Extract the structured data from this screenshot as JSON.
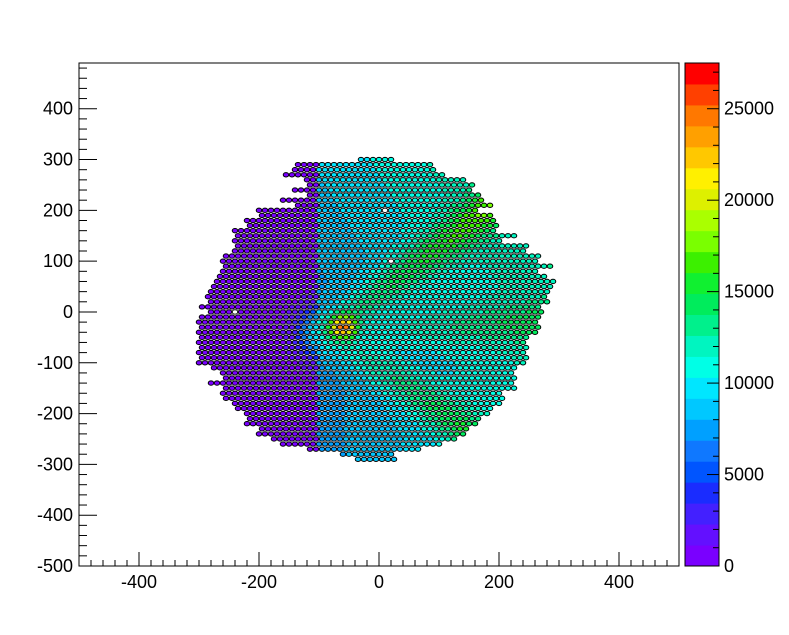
{
  "chart_data": {
    "type": "heatmap",
    "subtype": "hexagonal-sensor-map",
    "title": "",
    "xlabel": "",
    "ylabel": "",
    "xlim": [
      -500,
      500
    ],
    "ylim": [
      -500,
      490
    ],
    "x_ticks": [
      -400,
      -200,
      0,
      200,
      400
    ],
    "y_ticks": [
      -500,
      -400,
      -300,
      -200,
      -100,
      0,
      100,
      200,
      300,
      400
    ],
    "grid": false,
    "colorbar": {
      "min": 0,
      "max": 27500,
      "ticks": [
        0,
        5000,
        10000,
        15000,
        20000,
        25000
      ],
      "levels": [
        "#7a00ff",
        "#6310ff",
        "#4320ff",
        "#1a2cff",
        "#0055ff",
        "#0f78ff",
        "#00a0ff",
        "#00c8ff",
        "#00e6ff",
        "#00ffe6",
        "#00f5c0",
        "#00f08c",
        "#00ec5c",
        "#10f030",
        "#3cf000",
        "#7aff00",
        "#aaff00",
        "#ddf000",
        "#fff000",
        "#ffc800",
        "#ffa000",
        "#ff7800",
        "#ff4000",
        "#ff0000"
      ]
    },
    "grid_spec": {
      "cell_pitch_x": 10,
      "cell_pitch_y": 10,
      "odd_row_shift": 5,
      "cell_rx": 4.6,
      "cell_ry": 4.3,
      "row_y_start": 300,
      "rows": [
        [
          300,
          -3,
          2
        ],
        [
          290,
          -14,
          8
        ],
        [
          280,
          -14,
          9
        ],
        [
          270,
          -16,
          10
        ],
        [
          260,
          -12,
          14
        ],
        [
          250,
          -12,
          15
        ],
        [
          240,
          -14,
          15
        ],
        [
          230,
          -12,
          16
        ],
        [
          220,
          -16,
          17
        ],
        [
          210,
          -14,
          18
        ],
        [
          200,
          -20,
          16
        ],
        [
          190,
          -20,
          18
        ],
        [
          180,
          -22,
          19
        ],
        [
          170,
          -22,
          19
        ],
        [
          160,
          -24,
          19
        ],
        [
          150,
          -24,
          22
        ],
        [
          140,
          -24,
          20
        ],
        [
          130,
          -24,
          24
        ],
        [
          120,
          -24,
          24
        ],
        [
          110,
          -26,
          26
        ],
        [
          100,
          -26,
          26
        ],
        [
          90,
          -26,
          28
        ],
        [
          80,
          -26,
          26
        ],
        [
          70,
          -27,
          27
        ],
        [
          60,
          -27,
          29
        ],
        [
          50,
          -28,
          28
        ],
        [
          40,
          -28,
          28
        ],
        [
          30,
          -29,
          27
        ],
        [
          20,
          -28,
          28
        ],
        [
          10,
          -30,
          26
        ],
        [
          0,
          -28,
          27
        ],
        [
          -10,
          -30,
          26
        ],
        [
          -20,
          -30,
          26
        ],
        [
          -30,
          -30,
          26
        ],
        [
          -40,
          -30,
          26
        ],
        [
          -50,
          -30,
          24
        ],
        [
          -60,
          -30,
          24
        ],
        [
          -70,
          -30,
          24
        ],
        [
          -80,
          -30,
          24
        ],
        [
          -90,
          -30,
          24
        ],
        [
          -100,
          -30,
          24
        ],
        [
          -110,
          -28,
          22
        ],
        [
          -120,
          -26,
          22
        ],
        [
          -130,
          -26,
          22
        ],
        [
          -140,
          -28,
          22
        ],
        [
          -150,
          -26,
          22
        ],
        [
          -160,
          -26,
          20
        ],
        [
          -170,
          -26,
          20
        ],
        [
          -180,
          -24,
          20
        ],
        [
          -190,
          -24,
          18
        ],
        [
          -200,
          -22,
          18
        ],
        [
          -210,
          -22,
          16
        ],
        [
          -220,
          -22,
          16
        ],
        [
          -230,
          -20,
          14
        ],
        [
          -240,
          -20,
          14
        ],
        [
          -250,
          -18,
          12
        ],
        [
          -260,
          -16,
          10
        ],
        [
          -270,
          -12,
          6
        ],
        [
          -280,
          -6,
          2
        ],
        [
          -290,
          -4,
          2
        ]
      ]
    },
    "value_field": {
      "description": "Estimated per-cell values; low on the left half, rising toward the right/top-right, with a hot spot near (-60, -30) and a ridge from (-80,-40) toward (180,220).",
      "baseline_left": 500,
      "baseline_right": 7500,
      "transition_x": -100,
      "gradient_right_per_unit": 20,
      "ridge": {
        "from": [
          -80,
          -40
        ],
        "to": [
          200,
          220
        ],
        "peak": 18000,
        "width": 25
      },
      "ridge2": {
        "from": [
          -80,
          -40
        ],
        "to": [
          180,
          -260
        ],
        "peak": 16000,
        "width": 25
      },
      "ridge3": {
        "from": [
          -80,
          -40
        ],
        "to": [
          280,
          -20
        ],
        "peak": 15000,
        "width": 28
      },
      "hotspot": {
        "center": [
          -60,
          -30
        ],
        "peak": 25000,
        "radius": 16
      },
      "missing_cells": [
        [
          10,
          200
        ],
        [
          -240,
          0
        ],
        [
          20,
          100
        ]
      ]
    }
  }
}
